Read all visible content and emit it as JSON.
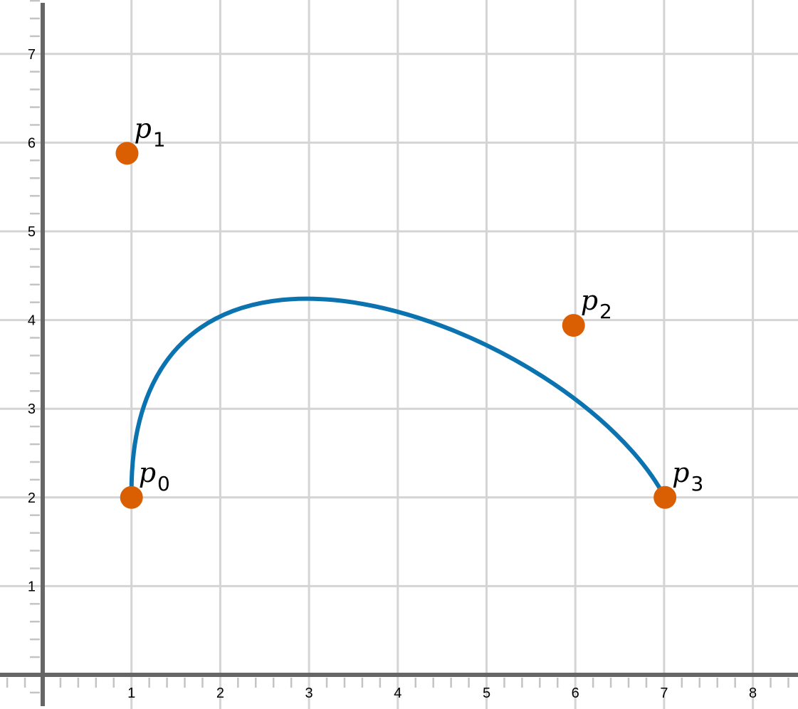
{
  "diagram": {
    "x_ticks": [
      "1",
      "2",
      "3",
      "4",
      "5",
      "6",
      "7",
      "8"
    ],
    "y_ticks": [
      "1",
      "2",
      "3",
      "4",
      "5",
      "6",
      "7"
    ],
    "points": [
      {
        "label": "p",
        "sub": "0",
        "x": 1,
        "y": 2
      },
      {
        "label": "p",
        "sub": "1",
        "x": 0.95,
        "y": 5.88
      },
      {
        "label": "p",
        "sub": "2",
        "x": 5.98,
        "y": 3.94
      },
      {
        "label": "p",
        "sub": "3",
        "x": 7.01,
        "y": 2
      }
    ],
    "colors": {
      "curve": "#0b73b0",
      "points": "#d95f02"
    }
  }
}
